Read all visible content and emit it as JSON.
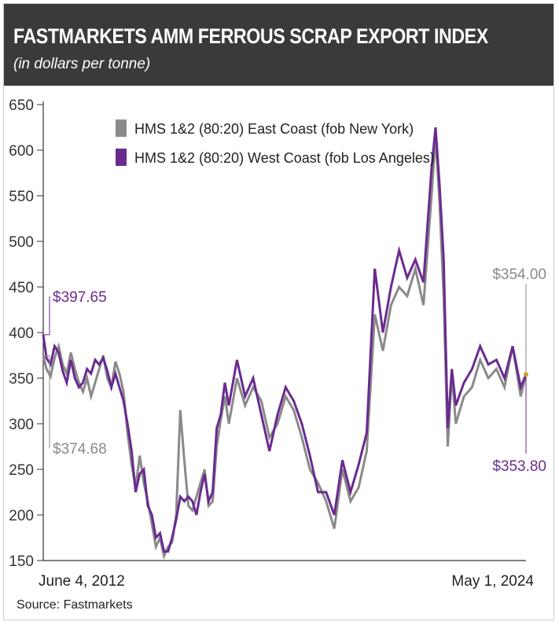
{
  "header": {
    "title": "FASTMARKETS AMM FERROUS SCRAP EXPORT INDEX",
    "subtitle": "(in dollars per tonne)"
  },
  "source": "Source: Fastmarkets",
  "chart_data": {
    "type": "line",
    "title": "FASTMARKETS AMM FERROUS SCRAP EXPORT INDEX",
    "ylabel": "(in dollars per tonne)",
    "ylim": [
      150,
      650
    ],
    "yticks": [
      150,
      200,
      250,
      300,
      350,
      400,
      450,
      500,
      550,
      600,
      650
    ],
    "x_start_label": "June 4, 2012",
    "x_end_label": "May 1, 2024",
    "x_range": [
      2012.42,
      2024.33
    ],
    "legend_position": "top",
    "colors": {
      "east": "#8a8a8a",
      "west": "#6a2b8f",
      "axis": "#333333"
    },
    "annotations": {
      "west_start": "$397.65",
      "east_start": "$374.68",
      "east_end": "$354.00",
      "west_end": "$353.80"
    },
    "series": [
      {
        "name": "HMS 1&2 (80:20) East Coast (fob New York)",
        "key": "east",
        "x": [
          2012.42,
          2012.5,
          2012.6,
          2012.7,
          2012.8,
          2012.9,
          2013.0,
          2013.1,
          2013.2,
          2013.3,
          2013.4,
          2013.5,
          2013.6,
          2013.7,
          2013.8,
          2013.9,
          2014.0,
          2014.1,
          2014.2,
          2014.3,
          2014.4,
          2014.5,
          2014.6,
          2014.7,
          2014.8,
          2014.9,
          2015.0,
          2015.1,
          2015.2,
          2015.3,
          2015.4,
          2015.5,
          2015.6,
          2015.7,
          2015.8,
          2015.9,
          2016.0,
          2016.1,
          2016.2,
          2016.3,
          2016.4,
          2016.5,
          2016.6,
          2016.7,
          2016.8,
          2016.9,
          2017.0,
          2017.2,
          2017.4,
          2017.6,
          2017.8,
          2018.0,
          2018.2,
          2018.4,
          2018.6,
          2018.8,
          2019.0,
          2019.2,
          2019.4,
          2019.6,
          2019.8,
          2020.0,
          2020.2,
          2020.4,
          2020.6,
          2020.8,
          2021.0,
          2021.2,
          2021.4,
          2021.6,
          2021.8,
          2022.0,
          2022.1,
          2022.2,
          2022.3,
          2022.4,
          2022.5,
          2022.6,
          2022.8,
          2023.0,
          2023.2,
          2023.4,
          2023.6,
          2023.8,
          2024.0,
          2024.2,
          2024.33
        ],
        "values": [
          374.68,
          360,
          352,
          372,
          385,
          365,
          355,
          378,
          360,
          345,
          335,
          350,
          330,
          345,
          360,
          375,
          350,
          340,
          368,
          355,
          335,
          290,
          255,
          230,
          265,
          235,
          215,
          190,
          165,
          175,
          155,
          165,
          170,
          200,
          315,
          260,
          210,
          205,
          220,
          235,
          250,
          210,
          215,
          275,
          305,
          330,
          300,
          350,
          320,
          340,
          325,
          285,
          300,
          330,
          315,
          285,
          250,
          235,
          215,
          185,
          250,
          215,
          230,
          270,
          420,
          380,
          430,
          450,
          440,
          470,
          430,
          550,
          615,
          540,
          440,
          275,
          355,
          300,
          330,
          340,
          370,
          350,
          360,
          340,
          385,
          330,
          354.0
        ]
      },
      {
        "name": "HMS 1&2 (80:20) West Coast (fob Los Angeles)",
        "key": "west",
        "x": [
          2012.42,
          2012.5,
          2012.6,
          2012.7,
          2012.8,
          2012.9,
          2013.0,
          2013.1,
          2013.2,
          2013.3,
          2013.4,
          2013.5,
          2013.6,
          2013.7,
          2013.8,
          2013.9,
          2014.0,
          2014.1,
          2014.2,
          2014.3,
          2014.4,
          2014.5,
          2014.6,
          2014.7,
          2014.8,
          2014.9,
          2015.0,
          2015.1,
          2015.2,
          2015.3,
          2015.4,
          2015.5,
          2015.6,
          2015.7,
          2015.8,
          2015.9,
          2016.0,
          2016.1,
          2016.2,
          2016.3,
          2016.4,
          2016.5,
          2016.6,
          2016.7,
          2016.8,
          2016.9,
          2017.0,
          2017.2,
          2017.4,
          2017.6,
          2017.8,
          2018.0,
          2018.2,
          2018.4,
          2018.6,
          2018.8,
          2019.0,
          2019.2,
          2019.4,
          2019.6,
          2019.8,
          2020.0,
          2020.2,
          2020.4,
          2020.6,
          2020.8,
          2021.0,
          2021.2,
          2021.4,
          2021.6,
          2021.8,
          2022.0,
          2022.1,
          2022.2,
          2022.3,
          2022.4,
          2022.5,
          2022.6,
          2022.8,
          2023.0,
          2023.2,
          2023.4,
          2023.6,
          2023.8,
          2024.0,
          2024.2,
          2024.33
        ],
        "values": [
          397.65,
          372,
          365,
          385,
          378,
          358,
          345,
          370,
          350,
          340,
          345,
          360,
          355,
          370,
          365,
          372,
          358,
          340,
          355,
          340,
          325,
          300,
          270,
          225,
          245,
          250,
          210,
          200,
          175,
          180,
          160,
          160,
          175,
          195,
          220,
          215,
          220,
          215,
          200,
          225,
          245,
          215,
          225,
          295,
          310,
          345,
          320,
          370,
          330,
          350,
          310,
          270,
          310,
          340,
          325,
          300,
          265,
          225,
          225,
          200,
          260,
          225,
          255,
          290,
          470,
          400,
          450,
          490,
          460,
          480,
          455,
          580,
          625,
          560,
          480,
          295,
          360,
          320,
          345,
          360,
          385,
          365,
          370,
          350,
          385,
          340,
          353.8
        ]
      }
    ]
  }
}
